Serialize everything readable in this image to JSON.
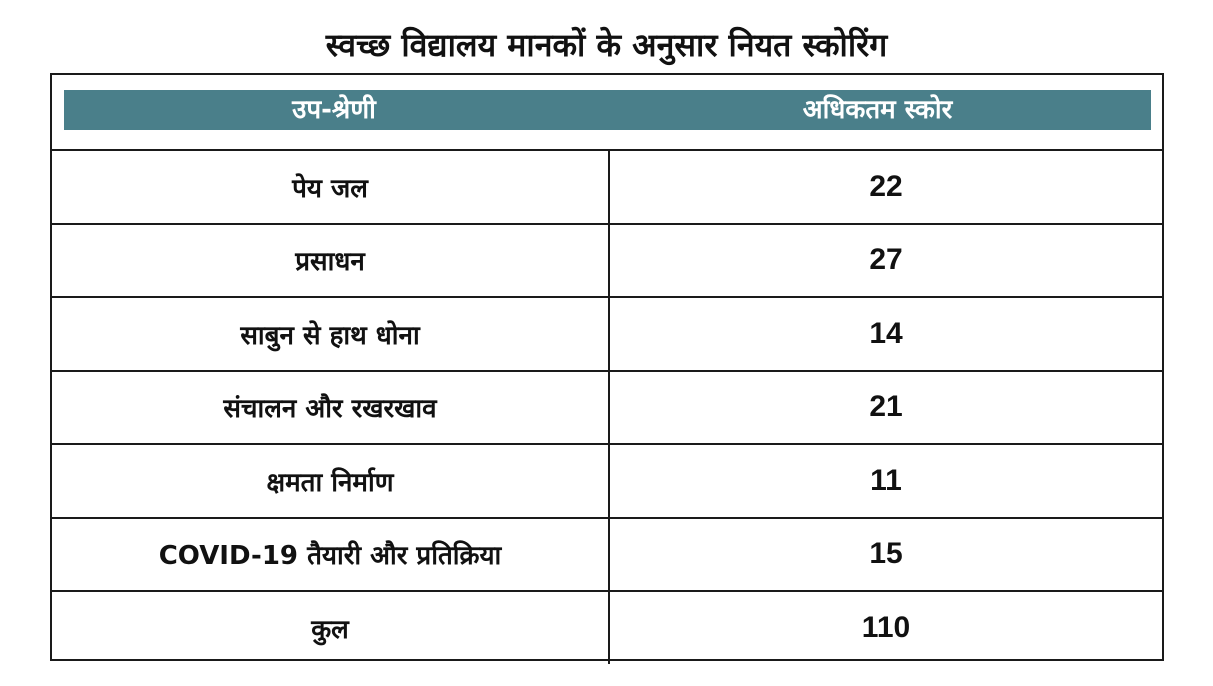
{
  "title": "स्वच्छ विद्यालय मानकों के अनुसार नियत स्कोरिंग",
  "table": {
    "headers": [
      "उप-श्रेणी",
      "अधिकतम स्कोर"
    ],
    "rows": [
      {
        "category": "पेय जल",
        "score": "22"
      },
      {
        "category": "प्रसाधन",
        "score": "27"
      },
      {
        "category": "साबुन से हाथ धोना",
        "score": "14"
      },
      {
        "category": "संचालन और रखरखाव",
        "score": "21"
      },
      {
        "category": "क्षमता निर्माण",
        "score": "11"
      },
      {
        "category": "COVID-19 तैयारी और प्रतिक्रिया",
        "score": "15"
      },
      {
        "category": "कुल",
        "score": "110"
      }
    ]
  },
  "colors": {
    "header_band": "#4a7f8a",
    "header_text": "#ffffff",
    "border": "#1a1a1a"
  }
}
